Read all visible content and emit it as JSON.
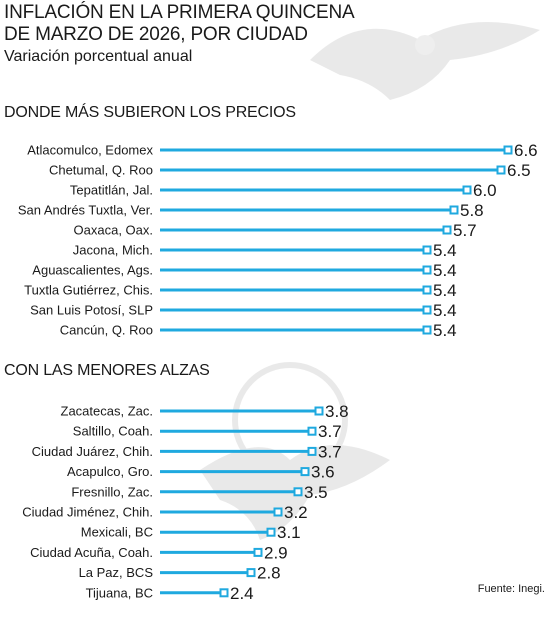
{
  "title_line1": "INFLACIÓN EN LA PRIMERA QUINCENA",
  "title_line2": "DE MARZO DE 2026, POR CIUDAD",
  "subtitle": "Variación porcentual anual",
  "source": "Fuente: Inegi.",
  "colors": {
    "bar": "#1fa9df",
    "text": "#1a1a1a"
  },
  "chart_data": [
    {
      "type": "bar",
      "orientation": "horizontal",
      "title": "DONDE MÁS SUBIERON LOS PRECIOS",
      "categories": [
        "Atlacomulco, Edomex",
        "Chetumal, Q. Roo",
        "Tepatitlán, Jal.",
        "San Andrés Tuxtla, Ver.",
        "Oaxaca, Oax.",
        "Jacona, Mich.",
        "Aguascalientes, Ags.",
        "Tuxtla Gutiérrez, Chis.",
        "San Luis Potosí, SLP",
        "Cancún, Q. Roo"
      ],
      "values": [
        6.6,
        6.5,
        6.0,
        5.8,
        5.7,
        5.4,
        5.4,
        5.4,
        5.4,
        5.4
      ],
      "value_labels": [
        "6.6",
        "6.5",
        "6.0",
        "5.8",
        "5.7",
        "5.4",
        "5.4",
        "5.4",
        "5.4",
        "5.4"
      ]
    },
    {
      "type": "bar",
      "orientation": "horizontal",
      "title": "CON LAS MENORES ALZAS",
      "categories": [
        "Zacatecas, Zac.",
        "Saltillo, Coah.",
        "Ciudad Juárez, Chih.",
        "Acapulco, Gro.",
        "Fresnillo, Zac.",
        "Ciudad Jiménez, Chih.",
        "Mexicali, BC",
        "Ciudad Acuña, Coah.",
        "La Paz, BCS",
        "Tijuana, BC"
      ],
      "values": [
        3.8,
        3.7,
        3.7,
        3.6,
        3.5,
        3.2,
        3.1,
        2.9,
        2.8,
        2.4
      ],
      "value_labels": [
        "3.8",
        "3.7",
        "3.7",
        "3.6",
        "3.5",
        "3.2",
        "3.1",
        "2.9",
        "2.8",
        "2.4"
      ]
    }
  ]
}
